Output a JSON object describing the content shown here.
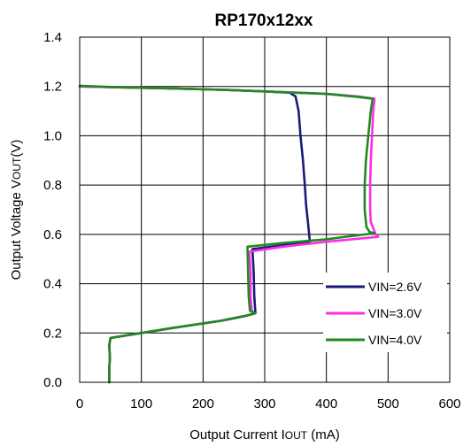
{
  "chart_data": {
    "type": "line",
    "title": "RP170x12xx",
    "xlabel": {
      "main": "Output Current I",
      "sub": "OUT",
      "unit": " (mA)"
    },
    "ylabel": {
      "main": "Output Voltage  V",
      "sub": "OUT",
      "unit": "(V)"
    },
    "xlim": [
      0,
      600
    ],
    "ylim": [
      0,
      1.4
    ],
    "x_ticks": [
      0,
      100,
      200,
      300,
      400,
      500,
      600
    ],
    "y_ticks": [
      0.0,
      0.2,
      0.4,
      0.6,
      0.8,
      1.0,
      1.2,
      1.4
    ],
    "x_tick_labels": [
      "0",
      "100",
      "200",
      "300",
      "400",
      "500",
      "600"
    ],
    "y_tick_labels": [
      "0.0",
      "0.2",
      "0.4",
      "0.6",
      "0.8",
      "1.0",
      "1.2",
      "1.4"
    ],
    "grid": true,
    "legend_position": "bottom-right",
    "series": [
      {
        "name": "VIN=2.6V",
        "color": "#1a1a7a",
        "points": [
          [
            0,
            1.2
          ],
          [
            50,
            1.197
          ],
          [
            150,
            1.192
          ],
          [
            250,
            1.185
          ],
          [
            300,
            1.18
          ],
          [
            340,
            1.175
          ],
          [
            350,
            1.16
          ],
          [
            355,
            1.1
          ],
          [
            358,
            1.0
          ],
          [
            362,
            0.9
          ],
          [
            365,
            0.8
          ],
          [
            367,
            0.72
          ],
          [
            370,
            0.65
          ],
          [
            372,
            0.6
          ],
          [
            373,
            0.57
          ],
          [
            280,
            0.54
          ],
          [
            282,
            0.45
          ],
          [
            283,
            0.35
          ],
          [
            285,
            0.28
          ],
          [
            270,
            0.27
          ],
          [
            230,
            0.25
          ],
          [
            150,
            0.22
          ],
          [
            100,
            0.2
          ],
          [
            50,
            0.18
          ],
          [
            48,
            0.15
          ],
          [
            49,
            0.1
          ],
          [
            48,
            0.05
          ],
          [
            48,
            0.0
          ]
        ]
      },
      {
        "name": "VIN=3.0V",
        "color": "#ff2ee6",
        "points": [
          [
            0,
            1.2
          ],
          [
            50,
            1.197
          ],
          [
            150,
            1.192
          ],
          [
            250,
            1.185
          ],
          [
            300,
            1.18
          ],
          [
            350,
            1.175
          ],
          [
            400,
            1.17
          ],
          [
            450,
            1.16
          ],
          [
            478,
            1.15
          ],
          [
            476,
            1.1
          ],
          [
            474,
            1.0
          ],
          [
            472,
            0.9
          ],
          [
            471,
            0.8
          ],
          [
            471,
            0.7
          ],
          [
            472,
            0.65
          ],
          [
            480,
            0.6
          ],
          [
            484,
            0.59
          ],
          [
            400,
            0.57
          ],
          [
            330,
            0.55
          ],
          [
            275,
            0.53
          ],
          [
            277,
            0.45
          ],
          [
            277,
            0.35
          ],
          [
            279,
            0.29
          ],
          [
            283,
            0.28
          ],
          [
            270,
            0.27
          ],
          [
            230,
            0.25
          ],
          [
            150,
            0.22
          ],
          [
            100,
            0.2
          ],
          [
            50,
            0.18
          ],
          [
            48,
            0.15
          ],
          [
            49,
            0.1
          ],
          [
            48,
            0.05
          ],
          [
            48,
            0.0
          ]
        ]
      },
      {
        "name": "VIN=4.0V",
        "color": "#1f8a1f",
        "points": [
          [
            0,
            1.203
          ],
          [
            50,
            1.198
          ],
          [
            150,
            1.192
          ],
          [
            250,
            1.185
          ],
          [
            300,
            1.18
          ],
          [
            350,
            1.175
          ],
          [
            400,
            1.17
          ],
          [
            450,
            1.158
          ],
          [
            475,
            1.15
          ],
          [
            472,
            1.1
          ],
          [
            468,
            1.0
          ],
          [
            464,
            0.9
          ],
          [
            462,
            0.8
          ],
          [
            462,
            0.7
          ],
          [
            465,
            0.63
          ],
          [
            470,
            0.61
          ],
          [
            478,
            0.605
          ],
          [
            400,
            0.58
          ],
          [
            330,
            0.565
          ],
          [
            272,
            0.55
          ],
          [
            273,
            0.45
          ],
          [
            274,
            0.35
          ],
          [
            276,
            0.29
          ],
          [
            285,
            0.28
          ],
          [
            270,
            0.27
          ],
          [
            230,
            0.25
          ],
          [
            150,
            0.22
          ],
          [
            100,
            0.2
          ],
          [
            50,
            0.18
          ],
          [
            48,
            0.15
          ],
          [
            49,
            0.1
          ],
          [
            48,
            0.05
          ],
          [
            48,
            0.0
          ]
        ]
      }
    ]
  }
}
